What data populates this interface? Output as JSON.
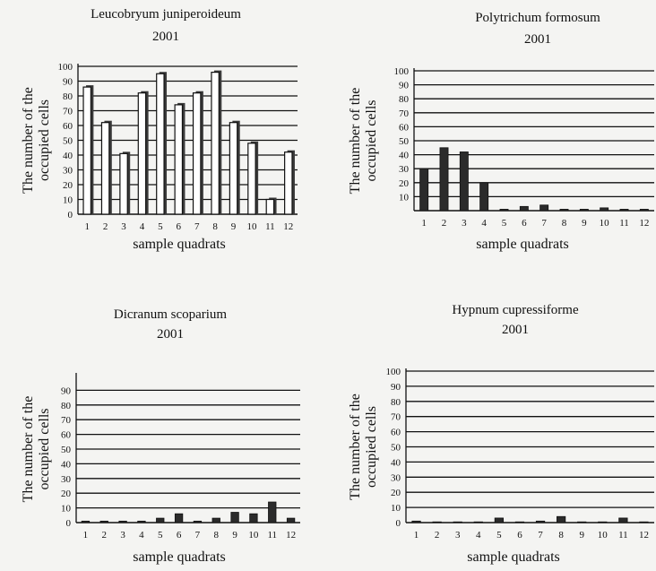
{
  "chart_data": [
    {
      "type": "bar",
      "title": "Leucobryum juniperoideum",
      "subtitle": "2001",
      "xlabel": "sample quadrats",
      "ylabel_lines": [
        "The number of the",
        "occupied cells"
      ],
      "categories": [
        "1",
        "2",
        "3",
        "4",
        "5",
        "6",
        "7",
        "8",
        "9",
        "10",
        "11",
        "12"
      ],
      "values": [
        86,
        62,
        41,
        82,
        95,
        74,
        82,
        96,
        62,
        48,
        10,
        42
      ],
      "ylim": [
        0,
        100
      ],
      "yticks": [
        0,
        10,
        20,
        30,
        40,
        50,
        60,
        70,
        80,
        90,
        100
      ],
      "bar_fill": "white",
      "grid": true
    },
    {
      "type": "bar",
      "title": "Polytrichum formosum",
      "subtitle": "2001",
      "xlabel": "sample quadrats",
      "ylabel_lines": [
        "The number of the",
        "occupied cells"
      ],
      "categories": [
        "1",
        "2",
        "3",
        "4",
        "5",
        "6",
        "7",
        "8",
        "9",
        "10",
        "11",
        "12"
      ],
      "values": [
        30,
        45,
        42,
        20,
        1,
        3,
        4,
        1,
        1,
        2,
        1,
        1
      ],
      "ylim": [
        0,
        100
      ],
      "yticks": [
        10,
        20,
        30,
        40,
        50,
        60,
        70,
        80,
        90,
        100
      ],
      "bar_fill": "dark",
      "grid": true
    },
    {
      "type": "bar",
      "title": "Dicranum scoparium",
      "subtitle": "2001",
      "xlabel": "sample quadrats",
      "ylabel_lines": [
        "The number of the",
        "occupied cells"
      ],
      "categories": [
        "1",
        "2",
        "3",
        "4",
        "5",
        "6",
        "7",
        "8",
        "9",
        "10",
        "11",
        "12"
      ],
      "values": [
        1,
        1,
        1,
        1,
        3,
        6,
        1,
        3,
        7,
        6,
        14,
        3
      ],
      "ylim": [
        0,
        100
      ],
      "yticks": [
        0,
        10,
        20,
        30,
        40,
        50,
        60,
        70,
        80,
        90
      ],
      "bar_fill": "dark",
      "grid": true
    },
    {
      "type": "bar",
      "title": "Hypnum cupressiforme",
      "subtitle": "2001",
      "xlabel": "sample quadrats",
      "ylabel_lines": [
        "The number of the",
        "occupied cells"
      ],
      "categories": [
        "1",
        "2",
        "3",
        "4",
        "5",
        "6",
        "7",
        "8",
        "9",
        "10",
        "11",
        "12"
      ],
      "values": [
        1,
        0,
        0,
        0,
        3,
        0,
        1,
        4,
        0,
        0,
        3,
        0
      ],
      "ylim": [
        0,
        100
      ],
      "yticks": [
        0,
        10,
        20,
        30,
        40,
        50,
        60,
        70,
        80,
        90,
        100
      ],
      "bar_fill": "dark",
      "grid": true
    }
  ],
  "colors": {
    "dark_bar": "#2b2b2b",
    "light_bar": "#ffffff",
    "line": "#111111"
  }
}
